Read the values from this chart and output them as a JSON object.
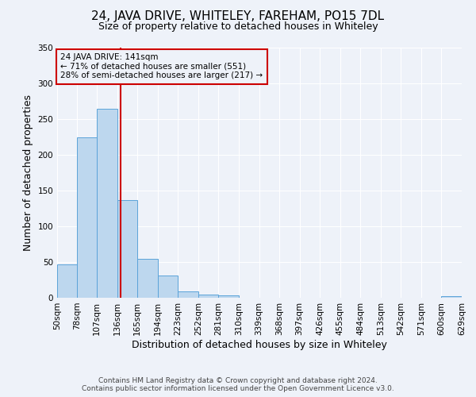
{
  "title": "24, JAVA DRIVE, WHITELEY, FAREHAM, PO15 7DL",
  "subtitle": "Size of property relative to detached houses in Whiteley",
  "xlabel": "Distribution of detached houses by size in Whiteley",
  "ylabel": "Number of detached properties",
  "bin_edges": [
    50,
    78,
    107,
    136,
    165,
    194,
    223,
    252,
    281,
    310,
    339,
    368,
    397,
    426,
    455,
    484,
    513,
    542,
    571,
    600,
    629
  ],
  "bar_heights": [
    47,
    224,
    265,
    137,
    55,
    31,
    9,
    5,
    3,
    0,
    0,
    0,
    0,
    0,
    0,
    0,
    0,
    0,
    0,
    2
  ],
  "bar_color": "#bdd7ee",
  "bar_edge_color": "#5ba3d9",
  "vline_x": 141,
  "vline_color": "#cc0000",
  "ylim": [
    0,
    350
  ],
  "yticks": [
    0,
    50,
    100,
    150,
    200,
    250,
    300,
    350
  ],
  "annotation_title": "24 JAVA DRIVE: 141sqm",
  "annotation_line1": "← 71% of detached houses are smaller (551)",
  "annotation_line2": "28% of semi-detached houses are larger (217) →",
  "annotation_box_color": "#cc0000",
  "footer_line1": "Contains HM Land Registry data © Crown copyright and database right 2024.",
  "footer_line2": "Contains public sector information licensed under the Open Government Licence v3.0.",
  "background_color": "#eef2f9",
  "grid_color": "#ffffff",
  "title_fontsize": 11,
  "subtitle_fontsize": 9,
  "axis_label_fontsize": 9,
  "tick_fontsize": 7.5,
  "footer_fontsize": 6.5,
  "annotation_fontsize": 7.5
}
